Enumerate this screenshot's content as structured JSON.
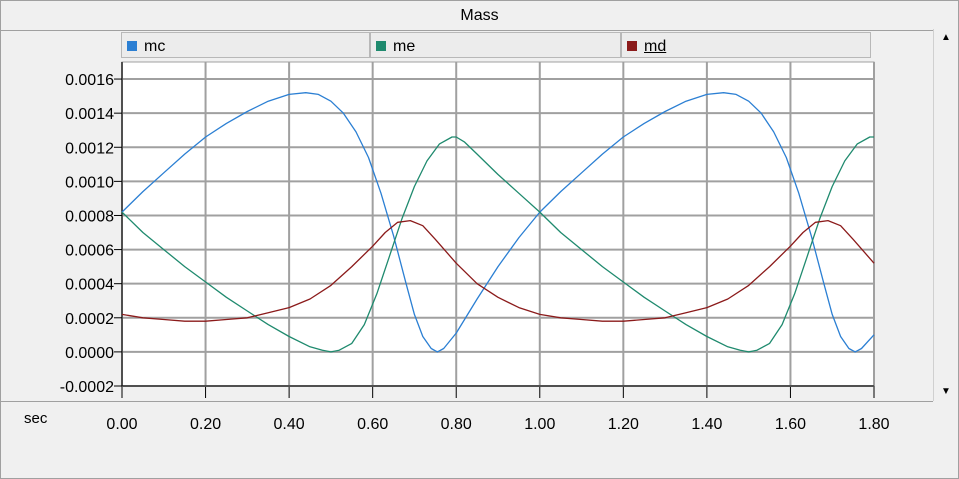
{
  "window": {
    "title": "Mass"
  },
  "xaxis_unit": "sec",
  "legend": [
    {
      "label": "mc",
      "color": "#2b7fd3"
    },
    {
      "label": "me",
      "color": "#1f8a6e"
    },
    {
      "label": "md",
      "color": "#8b1a1a"
    }
  ],
  "chart_data": {
    "type": "line",
    "title": "Mass",
    "xlabel": "sec",
    "ylabel": "",
    "xlim": [
      0,
      1.8
    ],
    "ylim": [
      -0.0002,
      0.0017
    ],
    "xticks": [
      "0.00",
      "0.20",
      "0.40",
      "0.60",
      "0.80",
      "1.00",
      "1.20",
      "1.40",
      "1.60",
      "1.80"
    ],
    "yticks": [
      "-0.0002",
      "0.0000",
      "0.0002",
      "0.0004",
      "0.0006",
      "0.0008",
      "0.0010",
      "0.0012",
      "0.0014",
      "0.0016"
    ],
    "grid": true,
    "legend_position": "top",
    "series": [
      {
        "name": "mc",
        "color": "#2b7fd3",
        "x": [
          0.0,
          0.05,
          0.1,
          0.15,
          0.2,
          0.25,
          0.3,
          0.35,
          0.4,
          0.44,
          0.47,
          0.5,
          0.53,
          0.56,
          0.59,
          0.62,
          0.65,
          0.68,
          0.7,
          0.72,
          0.74,
          0.755,
          0.77,
          0.8,
          0.85,
          0.9,
          0.95,
          1.0,
          1.05,
          1.1,
          1.15,
          1.2,
          1.25,
          1.3,
          1.35,
          1.4,
          1.44,
          1.47,
          1.5,
          1.53,
          1.56,
          1.59,
          1.62,
          1.65,
          1.68,
          1.7,
          1.72,
          1.74,
          1.755,
          1.77,
          1.8
        ],
        "y": [
          0.00082,
          0.00094,
          0.00105,
          0.00116,
          0.00126,
          0.00134,
          0.00141,
          0.00147,
          0.00151,
          0.00152,
          0.00151,
          0.00147,
          0.0014,
          0.00129,
          0.00114,
          0.00093,
          0.00068,
          0.0004,
          0.00022,
          9e-05,
          2e-05,
          0.0,
          2e-05,
          0.00011,
          0.00031,
          0.0005,
          0.00067,
          0.00082,
          0.00094,
          0.00105,
          0.00116,
          0.00126,
          0.00134,
          0.00141,
          0.00147,
          0.00151,
          0.00152,
          0.00151,
          0.00147,
          0.0014,
          0.00129,
          0.00114,
          0.00093,
          0.00068,
          0.0004,
          0.00022,
          9e-05,
          2e-05,
          0.0,
          2e-05,
          0.0001
        ]
      },
      {
        "name": "me",
        "color": "#1f8a6e",
        "x": [
          0.0,
          0.05,
          0.1,
          0.15,
          0.2,
          0.25,
          0.3,
          0.35,
          0.4,
          0.45,
          0.48,
          0.5,
          0.52,
          0.55,
          0.58,
          0.61,
          0.64,
          0.67,
          0.7,
          0.73,
          0.76,
          0.79,
          0.8,
          0.82,
          0.85,
          0.9,
          0.95,
          1.0,
          1.05,
          1.1,
          1.15,
          1.2,
          1.25,
          1.3,
          1.35,
          1.4,
          1.45,
          1.48,
          1.5,
          1.52,
          1.55,
          1.58,
          1.61,
          1.64,
          1.67,
          1.7,
          1.73,
          1.76,
          1.79,
          1.8
        ],
        "y": [
          0.00082,
          0.0007,
          0.0006,
          0.0005,
          0.00041,
          0.00032,
          0.00024,
          0.00016,
          9e-05,
          3e-05,
          1e-05,
          0.0,
          1e-05,
          5e-05,
          0.00016,
          0.00034,
          0.00056,
          0.00078,
          0.00097,
          0.00112,
          0.00122,
          0.00126,
          0.00126,
          0.00123,
          0.00116,
          0.00104,
          0.00093,
          0.00082,
          0.0007,
          0.0006,
          0.0005,
          0.00041,
          0.00032,
          0.00024,
          0.00016,
          9e-05,
          3e-05,
          1e-05,
          0.0,
          1e-05,
          5e-05,
          0.00016,
          0.00034,
          0.00056,
          0.00078,
          0.00097,
          0.00112,
          0.00122,
          0.00126,
          0.00126
        ]
      },
      {
        "name": "md",
        "color": "#8b1a1a",
        "x": [
          0.0,
          0.05,
          0.1,
          0.15,
          0.2,
          0.25,
          0.3,
          0.35,
          0.4,
          0.45,
          0.5,
          0.55,
          0.6,
          0.63,
          0.66,
          0.69,
          0.72,
          0.75,
          0.8,
          0.85,
          0.9,
          0.95,
          1.0,
          1.05,
          1.1,
          1.15,
          1.2,
          1.25,
          1.3,
          1.35,
          1.4,
          1.45,
          1.5,
          1.55,
          1.6,
          1.63,
          1.66,
          1.69,
          1.72,
          1.75,
          1.8
        ],
        "y": [
          0.00022,
          0.0002,
          0.00019,
          0.00018,
          0.00018,
          0.00019,
          0.0002,
          0.00023,
          0.00026,
          0.00031,
          0.00039,
          0.0005,
          0.00062,
          0.0007,
          0.00076,
          0.00077,
          0.00074,
          0.00066,
          0.00052,
          0.0004,
          0.00032,
          0.00026,
          0.00022,
          0.0002,
          0.00019,
          0.00018,
          0.00018,
          0.00019,
          0.0002,
          0.00023,
          0.00026,
          0.00031,
          0.00039,
          0.0005,
          0.00062,
          0.0007,
          0.00076,
          0.00077,
          0.00074,
          0.00066,
          0.00052
        ]
      }
    ]
  }
}
